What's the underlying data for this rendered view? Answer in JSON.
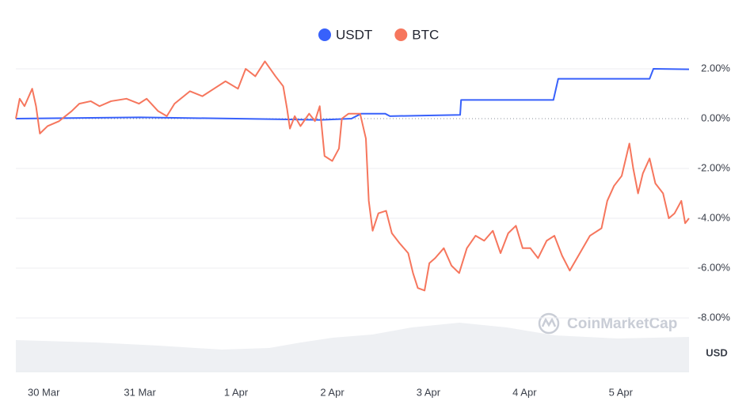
{
  "chart_data": {
    "type": "line",
    "watermark": "CoinMarketCap",
    "volume_label": "USD",
    "xlim": [
      -0.29,
      6.71
    ],
    "xticks": [
      {
        "value": 0,
        "label": "30 Mar"
      },
      {
        "value": 1,
        "label": "31 Mar"
      },
      {
        "value": 2,
        "label": "1 Apr"
      },
      {
        "value": 3,
        "label": "2 Apr"
      },
      {
        "value": 4,
        "label": "3 Apr"
      },
      {
        "value": 5,
        "label": "4 Apr"
      },
      {
        "value": 6,
        "label": "5 Apr"
      }
    ],
    "ylim": [
      -10,
      4
    ],
    "yticks": [
      {
        "value": -8,
        "label": "-8.00%"
      },
      {
        "value": -6,
        "label": "-6.00%"
      },
      {
        "value": -4,
        "label": "-4.00%"
      },
      {
        "value": -2,
        "label": "-2.00%"
      },
      {
        "value": 0,
        "label": "0.00%"
      },
      {
        "value": 2,
        "label": "2.00%"
      }
    ],
    "grid": true,
    "legend": "top",
    "series": [
      {
        "name": "USDT",
        "color": "#3861fb",
        "x": [
          -0.29,
          1.0,
          2.0,
          2.87,
          3.2,
          3.3,
          3.55,
          3.6,
          4.33,
          4.34,
          5.3,
          5.35,
          6.3,
          6.34,
          6.71
        ],
        "values": [
          0.0,
          0.05,
          0.0,
          -0.05,
          0.0,
          0.2,
          0.2,
          0.1,
          0.15,
          0.75,
          0.75,
          1.6,
          1.6,
          2.0,
          1.98
        ]
      },
      {
        "name": "BTC",
        "color": "#f6765d",
        "x": [
          -0.29,
          -0.25,
          -0.2,
          -0.12,
          -0.08,
          -0.04,
          0.04,
          0.16,
          0.29,
          0.37,
          0.49,
          0.58,
          0.7,
          0.86,
          0.99,
          1.07,
          1.19,
          1.28,
          1.36,
          1.52,
          1.65,
          1.77,
          1.89,
          2.02,
          2.1,
          2.2,
          2.3,
          2.41,
          2.49,
          2.53,
          2.56,
          2.61,
          2.67,
          2.76,
          2.82,
          2.87,
          2.92,
          3.0,
          3.07,
          3.1,
          3.17,
          3.23,
          3.29,
          3.35,
          3.38,
          3.42,
          3.48,
          3.56,
          3.62,
          3.7,
          3.79,
          3.84,
          3.89,
          3.96,
          4.01,
          4.07,
          4.16,
          4.24,
          4.32,
          4.4,
          4.49,
          4.58,
          4.67,
          4.75,
          4.83,
          4.91,
          4.98,
          5.06,
          5.14,
          5.23,
          5.31,
          5.39,
          5.47,
          5.56,
          5.68,
          5.8,
          5.86,
          5.93,
          6.01,
          6.09,
          6.13,
          6.18,
          6.23,
          6.3,
          6.36,
          6.44,
          6.5,
          6.56,
          6.63,
          6.67,
          6.71
        ],
        "values": [
          0.0,
          0.8,
          0.5,
          1.2,
          0.5,
          -0.6,
          -0.3,
          -0.1,
          0.3,
          0.6,
          0.7,
          0.5,
          0.7,
          0.8,
          0.6,
          0.8,
          0.3,
          0.1,
          0.6,
          1.1,
          0.9,
          1.2,
          1.5,
          1.2,
          2.0,
          1.7,
          2.3,
          1.7,
          1.3,
          0.4,
          -0.4,
          0.1,
          -0.3,
          0.2,
          -0.1,
          0.5,
          -1.5,
          -1.7,
          -1.2,
          0.0,
          0.2,
          0.2,
          0.2,
          -0.8,
          -3.3,
          -4.5,
          -3.8,
          -3.7,
          -4.6,
          -5.0,
          -5.4,
          -6.2,
          -6.8,
          -6.9,
          -5.8,
          -5.6,
          -5.2,
          -5.9,
          -6.2,
          -5.2,
          -4.7,
          -4.9,
          -4.5,
          -5.4,
          -4.6,
          -4.3,
          -5.2,
          -5.2,
          -5.6,
          -4.9,
          -4.7,
          -5.5,
          -6.1,
          -5.5,
          -4.7,
          -4.4,
          -3.3,
          -2.7,
          -2.3,
          -1.0,
          -2.0,
          -3.0,
          -2.2,
          -1.6,
          -2.6,
          -3.0,
          -4.0,
          -3.8,
          -3.3,
          -4.2,
          -4.0
        ]
      }
    ]
  }
}
